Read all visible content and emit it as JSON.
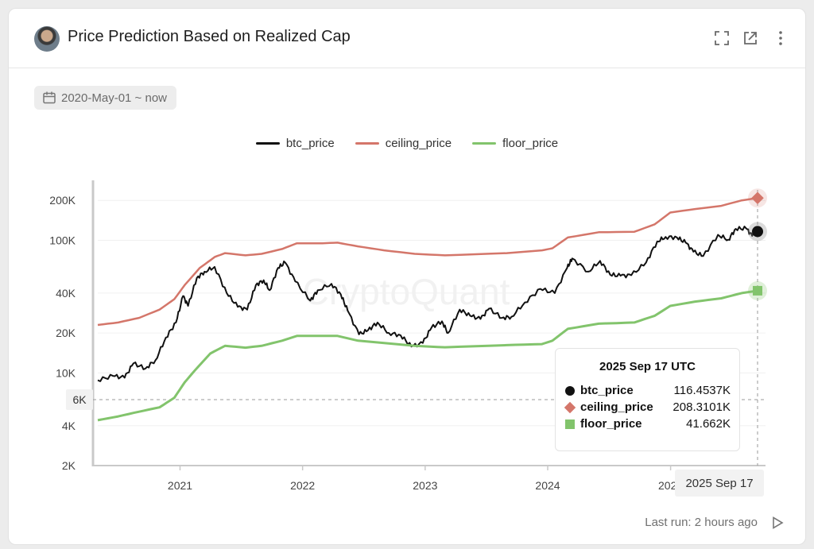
{
  "header": {
    "title": "Price Prediction Based on Realized Cap"
  },
  "date_range": "2020-May-01 ~ now",
  "tooltip": {
    "date": "2025 Sep 17 UTC",
    "rows": [
      {
        "name": "btc_price",
        "value": "116.4537K"
      },
      {
        "name": "ceiling_price",
        "value": "208.3101K"
      },
      {
        "name": "floor_price",
        "value": "41.662K"
      }
    ]
  },
  "x_badge": "2025 Sep 17",
  "crosshair_label": "6K",
  "watermark": "CryptoQuant",
  "footer": {
    "last_run": "Last run: 2 hours ago"
  },
  "colors": {
    "btc": "#111111",
    "ceiling": "#d4766a",
    "floor": "#82c46c"
  },
  "chart_data": {
    "type": "line",
    "yscale": "log",
    "ylim": [
      2000,
      240000
    ],
    "xlim": [
      "2020-05-01",
      "2025-09-17"
    ],
    "y_ticks": [
      {
        "value": 2000,
        "label": "2K"
      },
      {
        "value": 4000,
        "label": "4K"
      },
      {
        "value": 10000,
        "label": "10K"
      },
      {
        "value": 20000,
        "label": "20K"
      },
      {
        "value": 40000,
        "label": "40K"
      },
      {
        "value": 100000,
        "label": "100K"
      },
      {
        "value": 200000,
        "label": "200K"
      }
    ],
    "x_ticks": [
      {
        "date": "2021-01-01",
        "label": "2021"
      },
      {
        "date": "2022-01-01",
        "label": "2022"
      },
      {
        "date": "2023-01-01",
        "label": "2023"
      },
      {
        "date": "2024-01-01",
        "label": "2024"
      },
      {
        "date": "2025-01-01",
        "label": "2025"
      }
    ],
    "legend": [
      "btc_price",
      "ceiling_price",
      "floor_price"
    ],
    "series": [
      {
        "name": "btc_price",
        "points": [
          [
            "2020-05-01",
            8800
          ],
          [
            "2020-06-15",
            9500
          ],
          [
            "2020-07-20",
            9200
          ],
          [
            "2020-08-15",
            11800
          ],
          [
            "2020-09-20",
            10800
          ],
          [
            "2020-10-20",
            12500
          ],
          [
            "2020-11-20",
            18500
          ],
          [
            "2020-12-20",
            24000
          ],
          [
            "2021-01-10",
            38000
          ],
          [
            "2021-01-25",
            32000
          ],
          [
            "2021-02-20",
            52000
          ],
          [
            "2021-03-15",
            58000
          ],
          [
            "2021-04-14",
            63000
          ],
          [
            "2021-05-20",
            40000
          ],
          [
            "2021-06-22",
            31500
          ],
          [
            "2021-07-20",
            30000
          ],
          [
            "2021-08-15",
            46000
          ],
          [
            "2021-09-07",
            50000
          ],
          [
            "2021-09-25",
            42000
          ],
          [
            "2021-10-20",
            62000
          ],
          [
            "2021-11-10",
            68000
          ],
          [
            "2021-12-10",
            49000
          ],
          [
            "2022-01-24",
            35000
          ],
          [
            "2022-02-15",
            42000
          ],
          [
            "2022-03-28",
            47000
          ],
          [
            "2022-04-25",
            39000
          ],
          [
            "2022-05-15",
            29500
          ],
          [
            "2022-06-18",
            19500
          ],
          [
            "2022-07-15",
            21000
          ],
          [
            "2022-08-12",
            24000
          ],
          [
            "2022-09-15",
            20000
          ],
          [
            "2022-10-20",
            19200
          ],
          [
            "2022-11-21",
            15800
          ],
          [
            "2022-12-25",
            16800
          ],
          [
            "2023-01-20",
            22000
          ],
          [
            "2023-02-20",
            24500
          ],
          [
            "2023-03-10",
            20000
          ],
          [
            "2023-04-14",
            30000
          ],
          [
            "2023-05-15",
            27000
          ],
          [
            "2023-06-15",
            25500
          ],
          [
            "2023-07-10",
            30500
          ],
          [
            "2023-08-18",
            26000
          ],
          [
            "2023-09-15",
            26500
          ],
          [
            "2023-10-25",
            34000
          ],
          [
            "2023-12-10",
            43000
          ],
          [
            "2024-01-22",
            40000
          ],
          [
            "2024-02-28",
            62000
          ],
          [
            "2024-03-14",
            73000
          ],
          [
            "2024-05-01",
            58000
          ],
          [
            "2024-06-05",
            70000
          ],
          [
            "2024-07-05",
            55000
          ],
          [
            "2024-08-05",
            54000
          ],
          [
            "2024-09-06",
            54500
          ],
          [
            "2024-10-20",
            68000
          ],
          [
            "2024-11-22",
            98000
          ],
          [
            "2024-12-17",
            106000
          ],
          [
            "2025-01-20",
            105000
          ],
          [
            "2025-02-15",
            96000
          ],
          [
            "2025-03-10",
            82000
          ],
          [
            "2025-04-08",
            76000
          ],
          [
            "2025-05-22",
            110000
          ],
          [
            "2025-06-22",
            101000
          ],
          [
            "2025-07-14",
            122000
          ],
          [
            "2025-08-14",
            123000
          ],
          [
            "2025-09-01",
            108000
          ],
          [
            "2025-09-17",
            116453.7
          ]
        ]
      },
      {
        "name": "ceiling_price",
        "points": [
          [
            "2020-05-01",
            23000
          ],
          [
            "2020-07-01",
            24000
          ],
          [
            "2020-09-01",
            26000
          ],
          [
            "2020-11-01",
            30000
          ],
          [
            "2020-12-15",
            36000
          ],
          [
            "2021-01-15",
            46000
          ],
          [
            "2021-03-01",
            62000
          ],
          [
            "2021-04-15",
            75000
          ],
          [
            "2021-05-15",
            80000
          ],
          [
            "2021-07-15",
            77000
          ],
          [
            "2021-09-01",
            79000
          ],
          [
            "2021-11-01",
            86000
          ],
          [
            "2021-12-15",
            95000
          ],
          [
            "2022-03-01",
            95000
          ],
          [
            "2022-04-15",
            96000
          ],
          [
            "2022-06-15",
            90000
          ],
          [
            "2022-09-01",
            84000
          ],
          [
            "2022-12-01",
            79000
          ],
          [
            "2023-03-01",
            77000
          ],
          [
            "2023-09-01",
            80000
          ],
          [
            "2023-12-15",
            84000
          ],
          [
            "2024-01-15",
            87000
          ],
          [
            "2024-03-01",
            105000
          ],
          [
            "2024-06-01",
            115000
          ],
          [
            "2024-09-15",
            116000
          ],
          [
            "2024-11-15",
            132000
          ],
          [
            "2024-12-31",
            162000
          ],
          [
            "2025-03-15",
            172000
          ],
          [
            "2025-06-01",
            182000
          ],
          [
            "2025-08-01",
            200000
          ],
          [
            "2025-09-17",
            208310.1
          ]
        ]
      },
      {
        "name": "floor_price",
        "points": [
          [
            "2020-05-01",
            4400
          ],
          [
            "2020-07-01",
            4700
          ],
          [
            "2020-09-01",
            5100
          ],
          [
            "2020-11-01",
            5500
          ],
          [
            "2020-12-15",
            6500
          ],
          [
            "2021-01-15",
            8500
          ],
          [
            "2021-02-15",
            10500
          ],
          [
            "2021-04-01",
            14000
          ],
          [
            "2021-05-15",
            16000
          ],
          [
            "2021-07-15",
            15500
          ],
          [
            "2021-09-01",
            16000
          ],
          [
            "2021-11-01",
            17500
          ],
          [
            "2021-12-15",
            19000
          ],
          [
            "2022-04-15",
            19000
          ],
          [
            "2022-06-15",
            17500
          ],
          [
            "2022-09-01",
            16800
          ],
          [
            "2022-12-01",
            16000
          ],
          [
            "2023-03-01",
            15600
          ],
          [
            "2023-09-01",
            16200
          ],
          [
            "2023-12-15",
            16500
          ],
          [
            "2024-01-15",
            17500
          ],
          [
            "2024-03-01",
            21500
          ],
          [
            "2024-06-01",
            23500
          ],
          [
            "2024-09-15",
            24000
          ],
          [
            "2024-11-15",
            27000
          ],
          [
            "2024-12-31",
            32000
          ],
          [
            "2025-03-15",
            34500
          ],
          [
            "2025-06-01",
            36500
          ],
          [
            "2025-08-01",
            40000
          ],
          [
            "2025-09-17",
            41662
          ]
        ]
      }
    ]
  }
}
